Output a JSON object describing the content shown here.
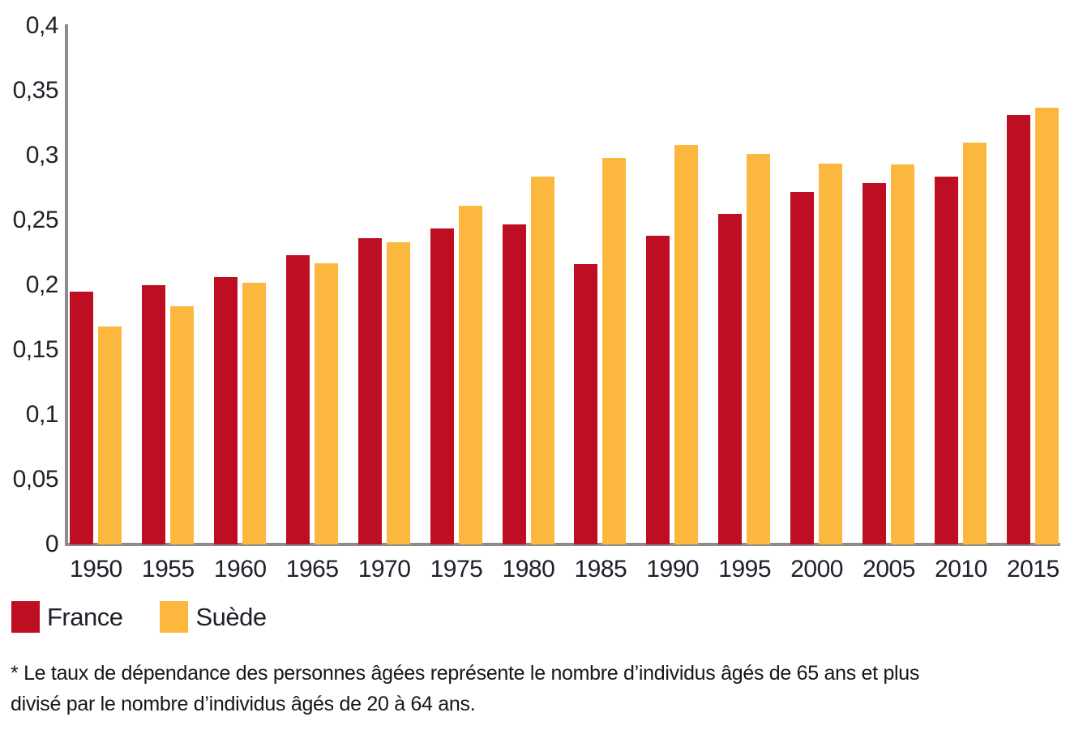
{
  "colors": {
    "france": "#bd0e22",
    "suede": "#fcb83e",
    "axis": "#8c8c8c",
    "tick_text": "#20202b",
    "footnote_text": "#171717"
  },
  "chart_data": {
    "type": "bar",
    "title": "",
    "xlabel": "",
    "ylabel": "",
    "categories": [
      "1950",
      "1955",
      "1960",
      "1965",
      "1970",
      "1975",
      "1980",
      "1985",
      "1990",
      "1995",
      "2000",
      "2005",
      "2010",
      "2015"
    ],
    "series": [
      {
        "name": "France",
        "color_key": "france",
        "values": [
          0.195,
          0.2,
          0.206,
          0.223,
          0.236,
          0.244,
          0.247,
          0.216,
          0.238,
          0.255,
          0.272,
          0.279,
          0.284,
          0.331
        ]
      },
      {
        "name": "Suède",
        "color_key": "suede",
        "values": [
          0.168,
          0.184,
          0.202,
          0.217,
          0.233,
          0.261,
          0.284,
          0.298,
          0.308,
          0.301,
          0.294,
          0.293,
          0.31,
          0.337
        ]
      }
    ],
    "ylim": [
      0,
      0.4
    ],
    "y_ticks": [
      {
        "label": "0",
        "value": 0
      },
      {
        "label": "0,05",
        "value": 0.05
      },
      {
        "label": "0,1",
        "value": 0.1
      },
      {
        "label": "0,15",
        "value": 0.15
      },
      {
        "label": "0,2",
        "value": 0.2
      },
      {
        "label": "0,25",
        "value": 0.25
      },
      {
        "label": "0,3",
        "value": 0.3
      },
      {
        "label": "0,35",
        "value": 0.35
      },
      {
        "label": "0,4",
        "value": 0.4
      }
    ],
    "grid": false,
    "legend_position": "bottom-left",
    "decimal_separator": ","
  },
  "legend": {
    "items": [
      {
        "label": "France",
        "color_key": "france"
      },
      {
        "label": "Suède",
        "color_key": "suede"
      }
    ]
  },
  "footnote": {
    "line1": "* Le taux de dépendance des personnes âgées représente le nombre d’individus âgés de 65 ans et plus",
    "line2": "divisé par le nombre d’individus âgés de 20 à 64 ans."
  }
}
